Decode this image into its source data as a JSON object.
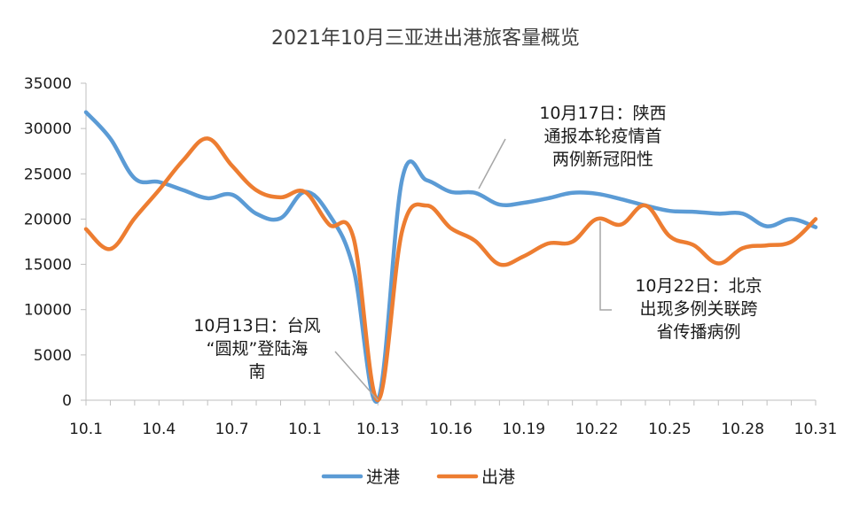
{
  "chart_data": {
    "type": "line",
    "title": "2021年10月三亚进出港旅客量概览",
    "xlabel": "",
    "ylabel": "",
    "ylim": [
      0,
      35000
    ],
    "yticks": [
      0,
      5000,
      10000,
      15000,
      20000,
      25000,
      30000,
      35000
    ],
    "x_tick_labels": [
      "10.1",
      "10.4",
      "10.7",
      "10.1",
      "10.13",
      "10.16",
      "10.19",
      "10.22",
      "10.25",
      "10.28",
      "10.31"
    ],
    "categories": [
      "10.1",
      "10.2",
      "10.3",
      "10.4",
      "10.5",
      "10.6",
      "10.7",
      "10.8",
      "10.9",
      "10.10",
      "10.11",
      "10.12",
      "10.13",
      "10.14",
      "10.15",
      "10.16",
      "10.17",
      "10.18",
      "10.19",
      "10.20",
      "10.21",
      "10.22",
      "10.23",
      "10.24",
      "10.25",
      "10.26",
      "10.27",
      "10.28",
      "10.29",
      "10.30",
      "10.31"
    ],
    "series": [
      {
        "name": "进港",
        "color": "#5B9BD5",
        "values": [
          31800,
          28900,
          24500,
          24100,
          23200,
          22300,
          22700,
          20600,
          20100,
          23000,
          20500,
          14500,
          0,
          24400,
          24300,
          23000,
          22900,
          21600,
          21800,
          22300,
          22900,
          22800,
          22200,
          21500,
          20900,
          20800,
          20600,
          20600,
          19200,
          20000,
          19100
        ]
      },
      {
        "name": "出港",
        "color": "#ED7D31",
        "values": [
          18900,
          16700,
          20100,
          23200,
          26500,
          28900,
          25900,
          23200,
          22400,
          23000,
          19400,
          17900,
          0,
          18700,
          21500,
          19000,
          17600,
          15000,
          15900,
          17300,
          17500,
          20000,
          19400,
          21500,
          18100,
          17100,
          15100,
          16800,
          17100,
          17500,
          20000
        ]
      }
    ],
    "annotations": [
      {
        "target": "10.13",
        "series": "进港",
        "lines": [
          "10月13日：台风",
          "“圆规”登陆海",
          "南"
        ]
      },
      {
        "target": "10.17",
        "series": "进港",
        "lines": [
          "10月17日：陕西",
          "通报本轮疫情首",
          "两例新冠阳性"
        ]
      },
      {
        "target": "10.22",
        "series": "出港",
        "lines": [
          "10月22日：北京",
          "出现多例关联跨",
          "省传播病例"
        ]
      }
    ],
    "legend_position": "bottom"
  }
}
